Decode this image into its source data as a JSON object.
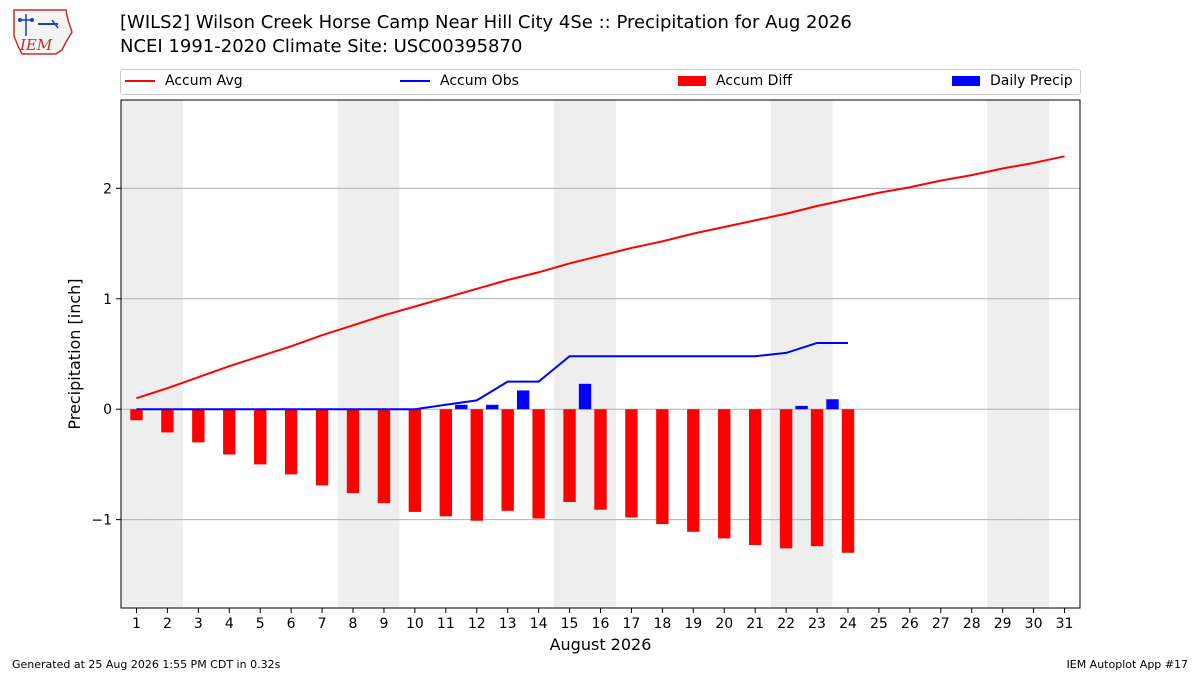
{
  "header": {
    "title_line1": "[WILS2] Wilson Creek Horse Camp Near Hill City 4Se :: Precipitation for Aug 2026",
    "title_line2": "NCEI 1991-2020 Climate Site: USC00395870",
    "logo_text": "IEM"
  },
  "legend": {
    "accum_avg": "Accum Avg",
    "accum_obs": "Accum Obs",
    "accum_diff": "Accum Diff",
    "daily_precip": "Daily Precip"
  },
  "footer": {
    "left": "Generated at 25 Aug 2026 1:55 PM CDT in 0.32s",
    "right": "IEM Autoplot App #17"
  },
  "colors": {
    "avg": "#ff0000",
    "obs": "#0000ff",
    "diff": "#ff0000",
    "daily": "#0000ff",
    "weekend_shade": "#eeeeee",
    "grid": "#b0b0b0"
  },
  "chart_data": {
    "type": "bar",
    "xlabel": "August 2026",
    "ylabel": "Precipitation [inch]",
    "xlim": [
      0.5,
      31.5
    ],
    "ylim": [
      -1.8,
      2.8
    ],
    "yticks": [
      -1,
      0,
      1,
      2
    ],
    "ytick_labels": [
      "−1",
      "0",
      "1",
      "2"
    ],
    "days": [
      1,
      2,
      3,
      4,
      5,
      6,
      7,
      8,
      9,
      10,
      11,
      12,
      13,
      14,
      15,
      16,
      17,
      18,
      19,
      20,
      21,
      22,
      23,
      24,
      25,
      26,
      27,
      28,
      29,
      30,
      31
    ],
    "weekend_days": [
      1,
      2,
      8,
      9,
      15,
      16,
      22,
      23,
      29,
      30
    ],
    "series": [
      {
        "name": "Accum Avg",
        "values": [
          0.1,
          0.19,
          0.29,
          0.39,
          0.48,
          0.57,
          0.67,
          0.76,
          0.85,
          0.93,
          1.01,
          1.09,
          1.17,
          1.24,
          1.32,
          1.39,
          1.46,
          1.52,
          1.59,
          1.65,
          1.71,
          1.77,
          1.84,
          1.9,
          1.96,
          2.01,
          2.07,
          2.12,
          2.18,
          2.23,
          2.29
        ]
      },
      {
        "name": "Accum Obs",
        "values": [
          0.0,
          0.0,
          0.0,
          0.0,
          0.0,
          0.0,
          0.0,
          0.0,
          0.0,
          0.0,
          0.04,
          0.08,
          0.25,
          0.25,
          0.48,
          0.48,
          0.48,
          0.48,
          0.48,
          0.48,
          0.48,
          0.51,
          0.6,
          0.6
        ]
      },
      {
        "name": "Accum Diff",
        "values": [
          -0.1,
          -0.21,
          -0.3,
          -0.41,
          -0.5,
          -0.59,
          -0.69,
          -0.76,
          -0.85,
          -0.93,
          -0.97,
          -1.01,
          -0.92,
          -0.99,
          -0.84,
          -0.91,
          -0.98,
          -1.04,
          -1.11,
          -1.17,
          -1.23,
          -1.26,
          -1.24,
          -1.3
        ]
      },
      {
        "name": "Daily Precip",
        "values": [
          0,
          0,
          0,
          0,
          0,
          0,
          0,
          0,
          0,
          0,
          0.04,
          0.04,
          0.17,
          0,
          0.23,
          0,
          0,
          0,
          0,
          0,
          0,
          0.03,
          0.09,
          0
        ]
      }
    ]
  }
}
